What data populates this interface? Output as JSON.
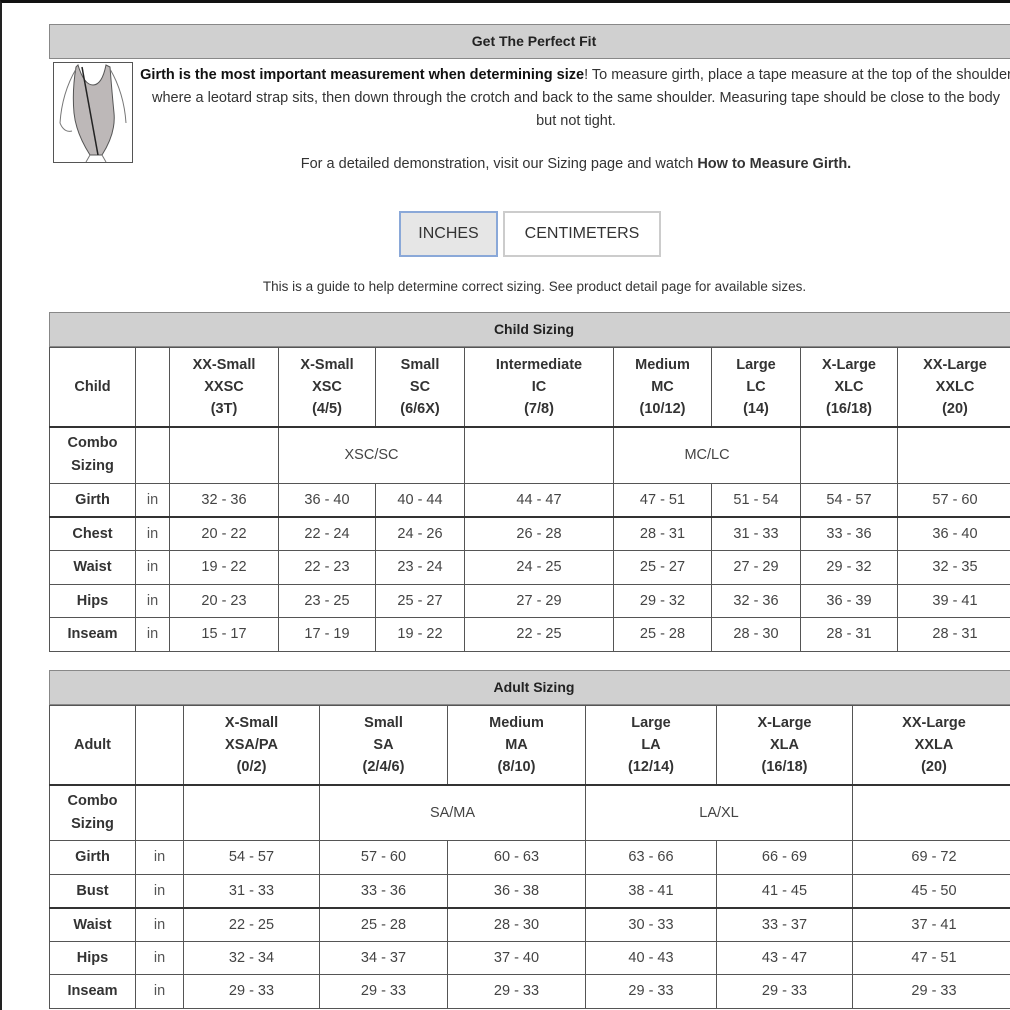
{
  "fit": {
    "title": "Get The Perfect Fit",
    "intro_bold": "Girth is the most important measurement when determining size",
    "intro_rest": "! To measure girth, place a tape measure at the top of the shoulder where a leotard strap sits, then down through the crotch and back to the same shoulder. Measuring tape should be close to the body but not tight.",
    "demo_text": "For a detailed demonstration, visit our Sizing page and watch ",
    "demo_link": "How to Measure Girth."
  },
  "units": {
    "inches": "INCHES",
    "centimeters": "CENTIMETERS",
    "selected": "INCHES"
  },
  "guide": "This is a guide to help determine correct sizing. See product detail page for available sizes.",
  "colors": {
    "header_bg": "#d0d0d0",
    "selected_button_bg": "#e6e6e6",
    "selected_button_border": "#8aa8d8"
  },
  "child": {
    "title": "Child Sizing",
    "corner": "Child",
    "sizes": [
      [
        "XX-Small",
        "XXSC",
        "(3T)"
      ],
      [
        "X-Small",
        "XSC",
        "(4/5)"
      ],
      [
        "Small",
        "SC",
        "(6/6X)"
      ],
      [
        "Intermediate",
        "IC",
        "(7/8)"
      ],
      [
        "Medium",
        "MC",
        "(10/12)"
      ],
      [
        "Large",
        "LC",
        "(14)"
      ],
      [
        "X-Large",
        "XLC",
        "(16/18)"
      ],
      [
        "XX-Large",
        "XXLC",
        "(20)"
      ]
    ],
    "combo_label": [
      "Combo",
      "Sizing"
    ],
    "combo": [
      {
        "text": "",
        "span": 1
      },
      {
        "text": "XSC/SC",
        "span": 2
      },
      {
        "text": "",
        "span": 1
      },
      {
        "text": "MC/LC",
        "span": 2
      },
      {
        "text": "",
        "span": 1
      },
      {
        "text": "",
        "span": 1
      }
    ],
    "rows": [
      {
        "label": "Girth",
        "unit": "in",
        "values": [
          "32 - 36",
          "36 - 40",
          "40 - 44",
          "44 - 47",
          "47 - 51",
          "51 - 54",
          "54 - 57",
          "57 - 60"
        ]
      },
      {
        "label": "Chest",
        "unit": "in",
        "values": [
          "20 - 22",
          "22 - 24",
          "24 - 26",
          "26 - 28",
          "28 - 31",
          "31 - 33",
          "33 - 36",
          "36 - 40"
        ]
      },
      {
        "label": "Waist",
        "unit": "in",
        "values": [
          "19 - 22",
          "22 - 23",
          "23 - 24",
          "24 - 25",
          "25 - 27",
          "27 - 29",
          "29 - 32",
          "32 - 35"
        ]
      },
      {
        "label": "Hips",
        "unit": "in",
        "values": [
          "20 - 23",
          "23 - 25",
          "25 - 27",
          "27 - 29",
          "29 - 32",
          "32 - 36",
          "36 - 39",
          "39 - 41"
        ]
      },
      {
        "label": "Inseam",
        "unit": "in",
        "values": [
          "15 - 17",
          "17 - 19",
          "19 - 22",
          "22 - 25",
          "25 - 28",
          "28 - 30",
          "28 - 31",
          "28 - 31"
        ]
      }
    ]
  },
  "adult": {
    "title": "Adult Sizing",
    "corner": "Adult",
    "sizes": [
      [
        "X-Small",
        "XSA/PA",
        "(0/2)"
      ],
      [
        "Small",
        "SA",
        "(2/4/6)"
      ],
      [
        "Medium",
        "MA",
        "(8/10)"
      ],
      [
        "Large",
        "LA",
        "(12/14)"
      ],
      [
        "X-Large",
        "XLA",
        "(16/18)"
      ],
      [
        "XX-Large",
        "XXLA",
        "(20)"
      ]
    ],
    "combo_label": [
      "Combo",
      "Sizing"
    ],
    "combo": [
      {
        "text": "",
        "span": 1
      },
      {
        "text": "SA/MA",
        "span": 2
      },
      {
        "text": "LA/XL",
        "span": 2
      },
      {
        "text": "",
        "span": 1
      }
    ],
    "rows": [
      {
        "label": "Girth",
        "unit": "in",
        "values": [
          "54 - 57",
          "57 - 60",
          "60 - 63",
          "63 - 66",
          "66 - 69",
          "69 - 72"
        ]
      },
      {
        "label": "Bust",
        "unit": "in",
        "values": [
          "31 - 33",
          "33 - 36",
          "36 - 38",
          "38 - 41",
          "41 - 45",
          "45 - 50"
        ]
      },
      {
        "label": "Waist",
        "unit": "in",
        "values": [
          "22 - 25",
          "25 - 28",
          "28 - 30",
          "30 - 33",
          "33 - 37",
          "37 - 41"
        ]
      },
      {
        "label": "Hips",
        "unit": "in",
        "values": [
          "32 - 34",
          "34 - 37",
          "37 - 40",
          "40 - 43",
          "43 - 47",
          "47 - 51"
        ]
      },
      {
        "label": "Inseam",
        "unit": "in",
        "values": [
          "29 - 33",
          "29 - 33",
          "29 - 33",
          "29 - 33",
          "29 - 33",
          "29 - 33"
        ]
      }
    ]
  }
}
